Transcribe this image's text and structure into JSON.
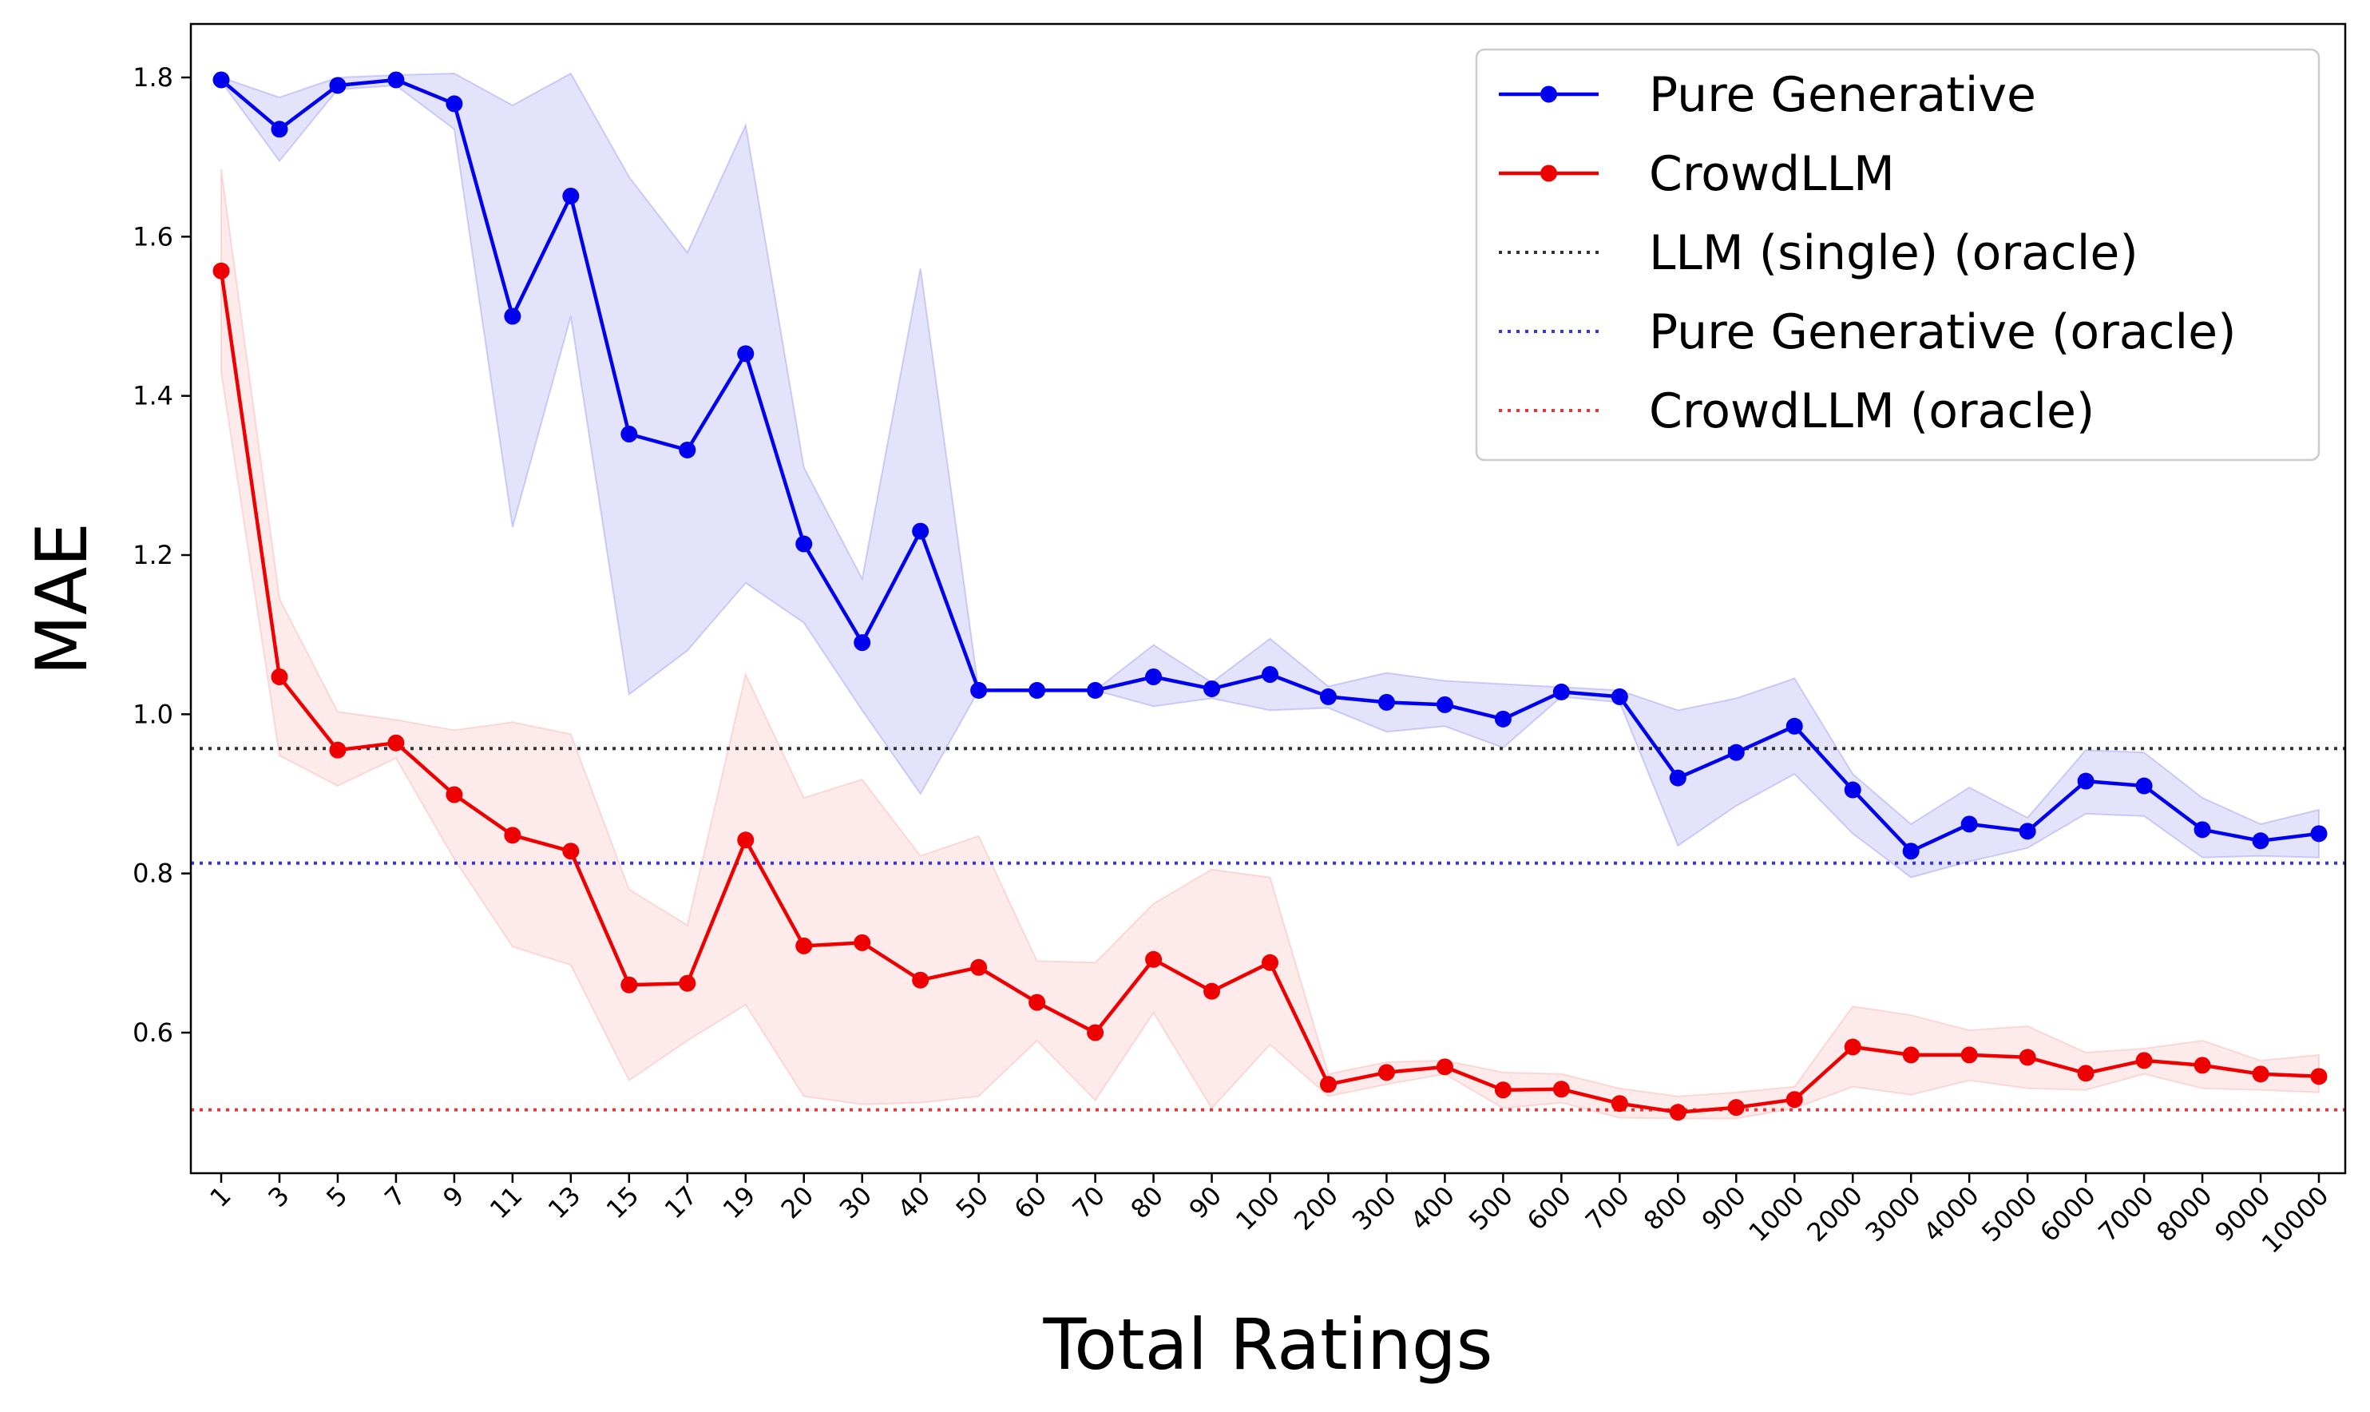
{
  "chart_data": {
    "type": "line",
    "title": "",
    "xlabel": "Total Ratings",
    "ylabel": "MAE",
    "categories": [
      "1",
      "3",
      "5",
      "7",
      "9",
      "11",
      "13",
      "15",
      "17",
      "19",
      "20",
      "30",
      "40",
      "50",
      "60",
      "70",
      "80",
      "90",
      "100",
      "200",
      "300",
      "400",
      "500",
      "600",
      "700",
      "800",
      "900",
      "1000",
      "2000",
      "3000",
      "4000",
      "5000",
      "6000",
      "7000",
      "8000",
      "9000",
      "10000"
    ],
    "ylim": [
      0.42,
      1.87
    ],
    "yticks": [
      "0.6",
      "0.8",
      "1.0",
      "1.2",
      "1.4",
      "1.6",
      "1.8"
    ],
    "ytick_values": [
      0.6,
      0.8,
      1.0,
      1.2,
      1.4,
      1.6,
      1.8
    ],
    "grid": false,
    "legend_position": "top-right",
    "series": [
      {
        "name": "Pure Generative",
        "color": "#0000ee",
        "band_color": "#8080f0",
        "values": [
          1.797,
          1.735,
          1.79,
          1.797,
          1.767,
          1.5,
          1.651,
          1.352,
          1.332,
          1.453,
          1.214,
          1.09,
          1.23,
          1.03,
          1.03,
          1.03,
          1.047,
          1.032,
          1.05,
          1.022,
          1.015,
          1.012,
          0.994,
          1.028,
          1.022,
          0.92,
          0.952,
          0.985,
          0.905,
          0.828,
          0.862,
          0.853,
          0.916,
          0.91,
          0.855,
          0.841,
          0.85
        ],
        "upper": [
          1.8,
          1.775,
          1.8,
          1.803,
          1.805,
          1.765,
          1.805,
          1.675,
          1.58,
          1.74,
          1.31,
          1.17,
          1.56,
          1.03,
          1.03,
          1.03,
          1.087,
          1.04,
          1.095,
          1.035,
          1.052,
          1.042,
          1.038,
          1.034,
          1.03,
          1.005,
          1.02,
          1.045,
          0.925,
          0.862,
          0.908,
          0.87,
          0.955,
          0.952,
          0.895,
          0.862,
          0.88
        ],
        "lower": [
          1.795,
          1.695,
          1.785,
          1.79,
          1.735,
          1.235,
          1.5,
          1.025,
          1.08,
          1.165,
          1.115,
          1.005,
          0.9,
          1.03,
          1.03,
          1.03,
          1.01,
          1.02,
          1.005,
          1.008,
          0.978,
          0.985,
          0.958,
          1.022,
          1.015,
          0.835,
          0.885,
          0.925,
          0.85,
          0.795,
          0.815,
          0.832,
          0.875,
          0.872,
          0.82,
          0.822,
          0.82
        ]
      },
      {
        "name": "CrowdLLM",
        "color": "#ee0000",
        "band_color": "#f8a0a0",
        "values": [
          1.557,
          1.047,
          0.955,
          0.964,
          0.899,
          0.848,
          0.828,
          0.66,
          0.662,
          0.842,
          0.709,
          0.713,
          0.666,
          0.682,
          0.638,
          0.6,
          0.692,
          0.652,
          0.688,
          0.535,
          0.55,
          0.557,
          0.528,
          0.529,
          0.511,
          0.5,
          0.506,
          0.516,
          0.582,
          0.572,
          0.572,
          0.569,
          0.549,
          0.565,
          0.559,
          0.548,
          0.545
        ],
        "upper": [
          1.685,
          1.145,
          1.003,
          0.993,
          0.98,
          0.99,
          0.975,
          0.78,
          0.735,
          1.05,
          0.895,
          0.918,
          0.822,
          0.847,
          0.69,
          0.688,
          0.762,
          0.805,
          0.795,
          0.548,
          0.563,
          0.565,
          0.55,
          0.548,
          0.53,
          0.52,
          0.525,
          0.532,
          0.633,
          0.622,
          0.603,
          0.608,
          0.575,
          0.58,
          0.59,
          0.565,
          0.572
        ],
        "lower": [
          1.43,
          0.948,
          0.91,
          0.945,
          0.818,
          0.708,
          0.685,
          0.54,
          0.59,
          0.635,
          0.52,
          0.51,
          0.512,
          0.52,
          0.59,
          0.515,
          0.625,
          0.505,
          0.585,
          0.52,
          0.535,
          0.548,
          0.505,
          0.512,
          0.493,
          0.492,
          0.492,
          0.505,
          0.532,
          0.522,
          0.54,
          0.53,
          0.528,
          0.548,
          0.53,
          0.528,
          0.525
        ]
      }
    ],
    "reference_lines": [
      {
        "name": "LLM (single) (oracle)",
        "value": 0.957,
        "color": "#333333"
      },
      {
        "name": "Pure Generative (oracle)",
        "value": 0.813,
        "color": "#3333ee"
      },
      {
        "name": "CrowdLLM (oracle)",
        "value": 0.503,
        "color": "#ee3333"
      }
    ]
  }
}
